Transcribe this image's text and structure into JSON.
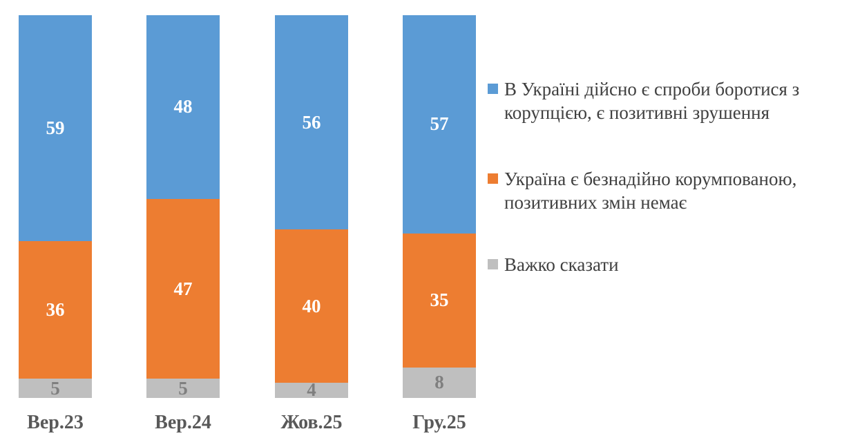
{
  "chart_data": {
    "type": "bar",
    "stacked": true,
    "orientation": "vertical",
    "categories": [
      "Вер.23",
      "Вер.24",
      "Жов.25",
      "Гру.25"
    ],
    "series": [
      {
        "name": "В Україні дійсно є спроби боротися з корупцією, є позитивні зрушення",
        "color": "#5B9BD5",
        "label_color": "#FFFFFF",
        "values": [
          59,
          48,
          56,
          57
        ]
      },
      {
        "name": "Україна є безнадійно корумпованою, позитивних змін немає",
        "color": "#ED7D31",
        "label_color": "#FFFFFF",
        "values": [
          36,
          47,
          40,
          35
        ]
      },
      {
        "name": "Важко сказати",
        "color": "#BFBFBF",
        "label_color": "#7F7F7F",
        "values": [
          5,
          5,
          4,
          8
        ]
      }
    ],
    "ylim": [
      0,
      100
    ],
    "grid": false,
    "data_labels": true,
    "legend_position": "right"
  },
  "colors": {
    "background": "#FFFFFF",
    "category_label_text": "#595959",
    "legend_text": "#404040"
  }
}
